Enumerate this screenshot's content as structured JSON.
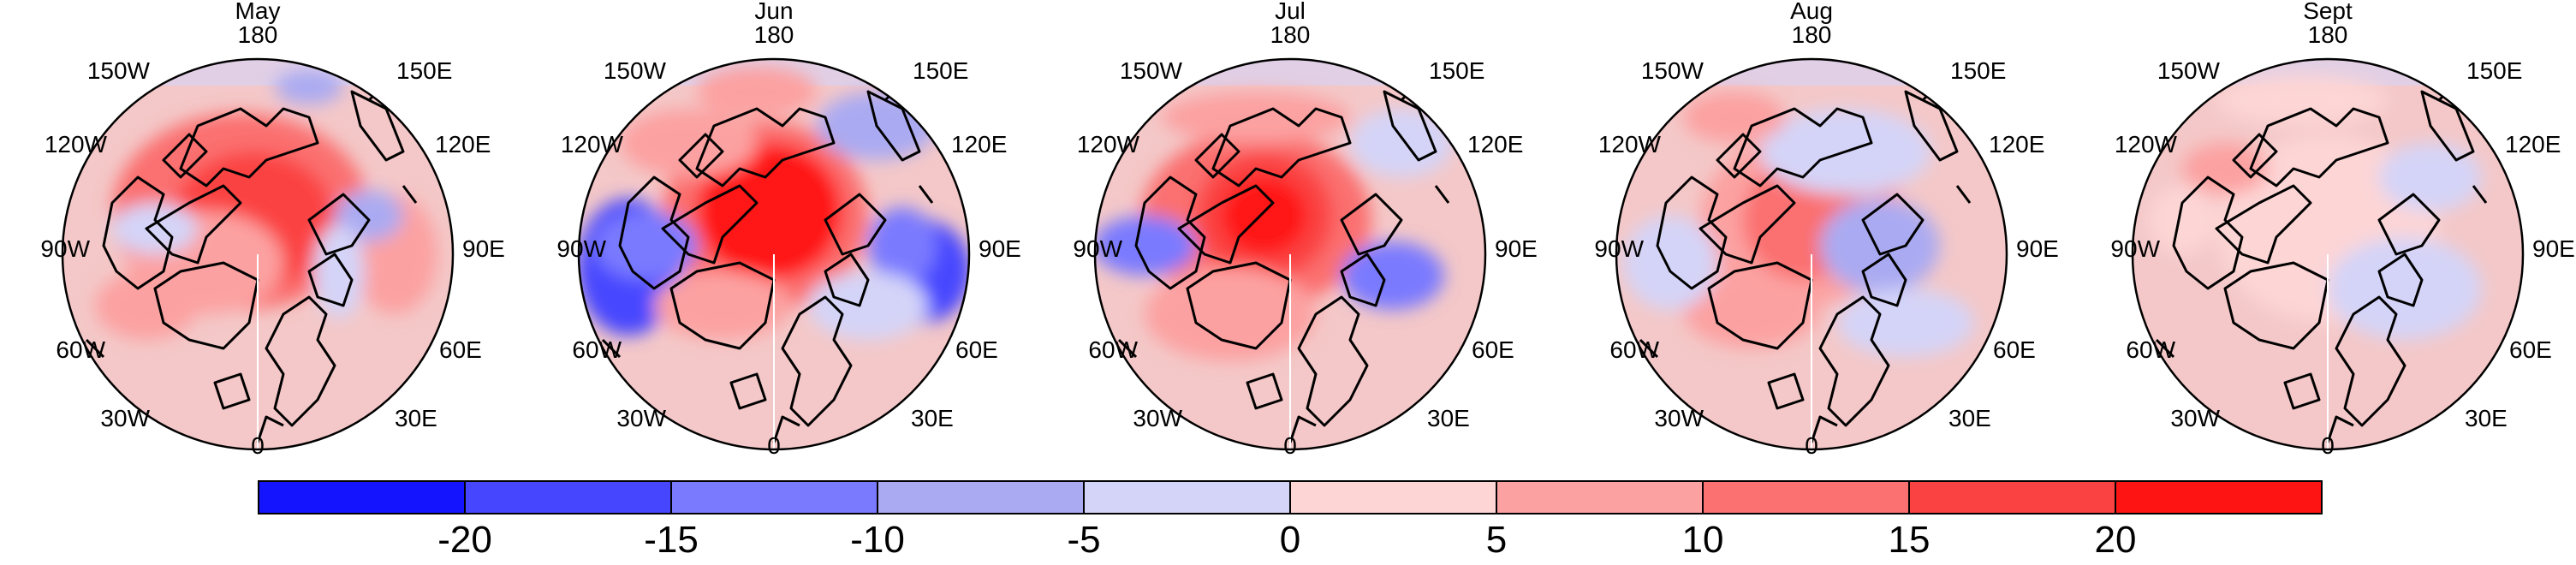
{
  "panels": [
    {
      "title": "May"
    },
    {
      "title": "Jun"
    },
    {
      "title": "Jul"
    },
    {
      "title": "Aug"
    },
    {
      "title": "Sept"
    }
  ],
  "longitude_labels": {
    "top": "180",
    "upper_left": "150W",
    "upper_right": "150E",
    "mid_upper_left": "120W",
    "mid_upper_right": "120E",
    "left": "90W",
    "right": "90E",
    "mid_lower_left": "60W",
    "mid_lower_right": "60E",
    "lower_left": "30W",
    "lower_right": "30E",
    "bottom": "0"
  },
  "colorbar": {
    "tick_labels": [
      "-20",
      "-15",
      "-10",
      "-5",
      "0",
      "5",
      "10",
      "15",
      "20"
    ],
    "bin_colors": [
      "#1414ff",
      "#4646ff",
      "#7a7aff",
      "#aaaaf2",
      "#d4d4f8",
      "#fdd5d5",
      "#fca1a1",
      "#fb7070",
      "#fb4242",
      "#ff1414"
    ]
  },
  "colors": {
    "coast": "#000000",
    "ocean_base": "#f4c8c8"
  }
}
